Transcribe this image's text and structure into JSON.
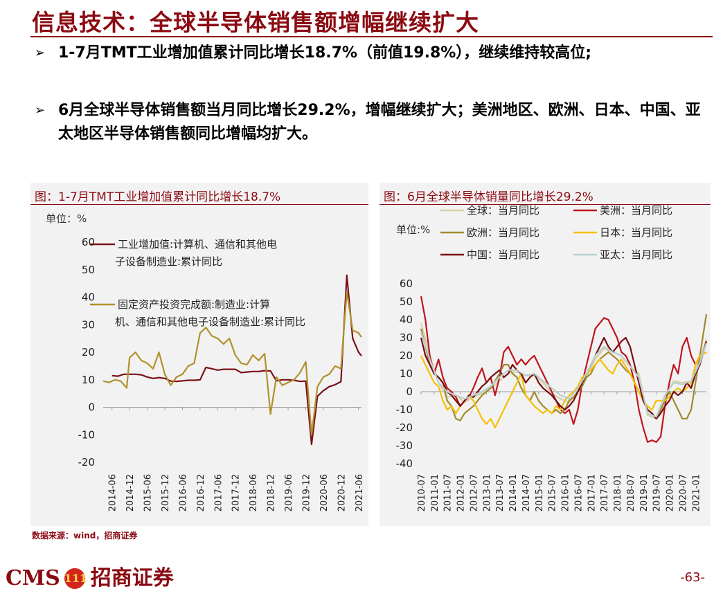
{
  "page": {
    "title": "信息技术：全球半导体销售额增幅继续扩大",
    "bullets": [
      {
        "arrow": "➢",
        "text": "1-7月TMT工业增加值累计同比增长18.7%（前值19.8%），继续维持较高位;"
      },
      {
        "arrow": "➢",
        "text": "6月全球半导体销售额当月同比增长29.2%，增幅继续扩大；美洲地区、欧洲、日本、中国、亚太地区半导体销售额同比增幅均扩大。"
      }
    ],
    "source": "数据来源：wind，招商证券",
    "logo_text": "CMS",
    "logo_badge": "111",
    "logo_name": "招商证券",
    "page_number": "-63-"
  },
  "colors": {
    "accent": "#8b0a12",
    "panel_bg": "#f2f2f2"
  },
  "chart_data": [
    {
      "type": "line",
      "title": "图：1-7月TMT工业增加值累计同比增长18.7%",
      "unit_label": "单位：%",
      "ylim": [
        -20,
        60
      ],
      "yticks": [
        60,
        50,
        40,
        30,
        20,
        10,
        0,
        -10,
        -20
      ],
      "xticks": [
        "2014-06",
        "2014-12",
        "2015-06",
        "2015-12",
        "2016-06",
        "2016-12",
        "2017-06",
        "2017-12",
        "2018-06",
        "2018-12",
        "2019-06",
        "2019-12",
        "2020-06",
        "2020-12",
        "2021-06"
      ],
      "legend": [
        "工业增加值:计算机、通信和其他电子设备制造业:累计同比",
        "固定资产投资完成额:制造业:计算机、通信和其他电子设备制造业:累计同比"
      ],
      "series": [
        {
          "name": "工业增加值:计算机、通信和其他电子设备制造业:累计同比",
          "color": "#7b1018",
          "x": [
            "2014-06",
            "2014-08",
            "2014-10",
            "2014-12",
            "2015-02",
            "2015-04",
            "2015-06",
            "2015-08",
            "2015-10",
            "2015-12",
            "2016-02",
            "2016-04",
            "2016-06",
            "2016-08",
            "2016-10",
            "2016-12",
            "2017-02",
            "2017-04",
            "2017-06",
            "2017-08",
            "2017-10",
            "2017-12",
            "2018-02",
            "2018-04",
            "2018-06",
            "2018-08",
            "2018-10",
            "2018-12",
            "2019-02",
            "2019-04",
            "2019-06",
            "2019-08",
            "2019-10",
            "2019-12",
            "2020-02",
            "2020-04",
            "2020-06",
            "2020-08",
            "2020-10",
            "2020-12",
            "2021-02",
            "2021-04",
            "2021-06",
            "2021-07"
          ],
          "values": [
            11.5,
            11.3,
            12,
            12,
            12,
            11.8,
            11,
            10.5,
            10.8,
            10.5,
            9.5,
            9.4,
            9.6,
            9.8,
            9.8,
            10,
            14.5,
            14,
            13.5,
            13.8,
            13.8,
            13.8,
            12.6,
            12.8,
            13,
            13,
            13.3,
            13.2,
            9.6,
            10,
            10,
            9.8,
            9.4,
            9.5,
            -13.5,
            4,
            6,
            7.5,
            8.2,
            9.3,
            48,
            25,
            20,
            18.7
          ]
        },
        {
          "name": "固定资产投资完成额:制造业:计算机、通信和其他电子设备制造业:累计同比",
          "color": "#b0912c",
          "x": [
            "2014-03",
            "2014-05",
            "2014-07",
            "2014-09",
            "2014-11",
            "2014-12",
            "2015-02",
            "2015-04",
            "2015-06",
            "2015-08",
            "2015-10",
            "2015-12",
            "2016-02",
            "2016-04",
            "2016-06",
            "2016-08",
            "2016-10",
            "2016-12",
            "2017-02",
            "2017-04",
            "2017-06",
            "2017-08",
            "2017-10",
            "2017-12",
            "2018-02",
            "2018-04",
            "2018-06",
            "2018-08",
            "2018-10",
            "2018-12",
            "2019-02",
            "2019-04",
            "2019-06",
            "2019-08",
            "2019-10",
            "2019-12",
            "2020-02",
            "2020-04",
            "2020-06",
            "2020-08",
            "2020-10",
            "2020-12",
            "2021-02",
            "2021-04",
            "2021-06",
            "2021-07"
          ],
          "values": [
            9.5,
            9,
            10,
            9.5,
            7,
            18,
            20,
            17,
            16,
            14,
            20,
            12,
            8,
            11,
            12,
            15,
            16,
            27,
            29,
            26,
            25,
            23,
            25,
            19,
            16,
            15.5,
            19,
            17,
            19.5,
            -2.5,
            11,
            8,
            9,
            10,
            12.5,
            16.5,
            -10,
            7.5,
            11,
            12,
            15,
            14,
            42,
            28,
            27,
            25.5
          ]
        }
      ]
    },
    {
      "type": "line",
      "title": "图：6月全球半导体销量同比增长29.2%",
      "unit_label": "单位:%",
      "ylim": [
        -40,
        60
      ],
      "yticks": [
        60,
        50,
        40,
        30,
        20,
        10,
        0,
        -10,
        -20,
        -30,
        -40
      ],
      "xticks": [
        "2010-07",
        "2011-01",
        "2011-07",
        "2012-01",
        "2012-07",
        "2013-01",
        "2013-07",
        "2014-01",
        "2014-07",
        "2015-01",
        "2015-07",
        "2016-01",
        "2016-07",
        "2017-01",
        "2017-07",
        "2018-01",
        "2018-07",
        "2019-01",
        "2019-07",
        "2020-01",
        "2020-07",
        "2021-01"
      ],
      "legend": [
        "全球：当月同比",
        "美洲：当月同比",
        "欧洲：当月同比",
        "日本：当月同比",
        "中国：当月同比",
        "亚太：当月同比"
      ],
      "series": [
        {
          "name": "全球：当月同比",
          "color": "#d8d1a6",
          "x": [
            "2010-07",
            "2010-11",
            "2011-03",
            "2011-07",
            "2011-11",
            "2012-03",
            "2012-07",
            "2012-11",
            "2013-03",
            "2013-07",
            "2013-11",
            "2014-03",
            "2014-07",
            "2014-11",
            "2015-03",
            "2015-07",
            "2015-11",
            "2016-03",
            "2016-07",
            "2016-11",
            "2017-03",
            "2017-07",
            "2017-11",
            "2018-03",
            "2018-07",
            "2018-11",
            "2019-03",
            "2019-07",
            "2019-11",
            "2020-03",
            "2020-07",
            "2020-11",
            "2021-03",
            "2021-06"
          ],
          "values": [
            38,
            20,
            5,
            -3,
            -2,
            -6,
            -3,
            -1,
            2,
            6,
            10,
            11,
            9,
            9,
            5,
            -1,
            -4,
            -6,
            0,
            8,
            18,
            24,
            22,
            20,
            14,
            10,
            -13,
            -15,
            -3,
            6,
            5,
            6,
            18,
            29.2
          ]
        },
        {
          "name": "美洲：当月同比",
          "color": "#c0141c",
          "x": [
            "2010-07",
            "2010-09",
            "2010-11",
            "2011-01",
            "2011-03",
            "2011-05",
            "2011-07",
            "2011-09",
            "2011-11",
            "2012-01",
            "2012-03",
            "2012-05",
            "2012-07",
            "2012-09",
            "2012-11",
            "2013-01",
            "2013-03",
            "2013-05",
            "2013-07",
            "2013-09",
            "2013-11",
            "2014-01",
            "2014-03",
            "2014-05",
            "2014-07",
            "2014-09",
            "2014-11",
            "2015-01",
            "2015-03",
            "2015-05",
            "2015-07",
            "2015-09",
            "2015-11",
            "2016-01",
            "2016-03",
            "2016-05",
            "2016-07",
            "2016-09",
            "2016-11",
            "2017-01",
            "2017-03",
            "2017-05",
            "2017-07",
            "2017-09",
            "2017-11",
            "2018-01",
            "2018-03",
            "2018-05",
            "2018-07",
            "2018-09",
            "2018-11",
            "2019-01",
            "2019-03",
            "2019-05",
            "2019-07",
            "2019-09",
            "2019-11",
            "2020-01",
            "2020-03",
            "2020-05",
            "2020-07",
            "2020-09",
            "2020-11",
            "2021-01",
            "2021-03",
            "2021-06"
          ],
          "values": [
            53,
            40,
            20,
            10,
            18,
            8,
            2,
            0,
            -3,
            -8,
            -5,
            -3,
            2,
            8,
            13,
            5,
            8,
            -2,
            8,
            22,
            25,
            20,
            15,
            18,
            15,
            18,
            20,
            15,
            10,
            5,
            0,
            -5,
            -10,
            -12,
            -10,
            -18,
            -10,
            5,
            15,
            25,
            35,
            38,
            41,
            40,
            35,
            30,
            22,
            20,
            15,
            5,
            -10,
            -20,
            -28,
            -27,
            -28,
            -25,
            -8,
            5,
            15,
            10,
            25,
            30,
            20,
            15,
            20,
            22
          ]
        },
        {
          "name": "欧洲：当月同比",
          "color": "#a08a2e",
          "x": [
            "2010-07",
            "2010-09",
            "2010-11",
            "2011-01",
            "2011-03",
            "2011-05",
            "2011-07",
            "2011-09",
            "2011-11",
            "2012-01",
            "2012-03",
            "2012-05",
            "2012-07",
            "2012-09",
            "2012-11",
            "2013-01",
            "2013-03",
            "2013-05",
            "2013-07",
            "2013-09",
            "2013-11",
            "2014-01",
            "2014-03",
            "2014-05",
            "2014-07",
            "2014-09",
            "2014-11",
            "2015-01",
            "2015-03",
            "2015-05",
            "2015-07",
            "2015-09",
            "2015-11",
            "2016-01",
            "2016-03",
            "2016-05",
            "2016-07",
            "2016-09",
            "2016-11",
            "2017-01",
            "2017-03",
            "2017-05",
            "2017-07",
            "2017-09",
            "2017-11",
            "2018-01",
            "2018-03",
            "2018-05",
            "2018-07",
            "2018-09",
            "2018-11",
            "2019-01",
            "2019-03",
            "2019-05",
            "2019-07",
            "2019-09",
            "2019-11",
            "2020-01",
            "2020-03",
            "2020-05",
            "2020-07",
            "2020-09",
            "2020-11",
            "2021-01",
            "2021-03",
            "2021-06"
          ],
          "values": [
            35,
            25,
            15,
            10,
            8,
            5,
            -5,
            -8,
            -15,
            -16,
            -12,
            -10,
            -8,
            -5,
            -2,
            0,
            2,
            6,
            10,
            15,
            15,
            10,
            8,
            2,
            -2,
            -5,
            0,
            -5,
            -8,
            -10,
            -12,
            -10,
            -12,
            -10,
            -5,
            -3,
            0,
            3,
            8,
            10,
            15,
            18,
            20,
            22,
            20,
            18,
            15,
            12,
            10,
            5,
            0,
            -5,
            -10,
            -12,
            -15,
            -10,
            -5,
            0,
            -5,
            -10,
            -15,
            -15,
            -10,
            5,
            20,
            43
          ]
        },
        {
          "name": "日本：当月同比",
          "color": "#f5c000",
          "x": [
            "2010-07",
            "2010-09",
            "2010-11",
            "2011-01",
            "2011-03",
            "2011-05",
            "2011-07",
            "2011-09",
            "2011-11",
            "2012-01",
            "2012-03",
            "2012-05",
            "2012-07",
            "2012-09",
            "2012-11",
            "2013-01",
            "2013-03",
            "2013-05",
            "2013-07",
            "2013-09",
            "2013-11",
            "2014-01",
            "2014-03",
            "2014-05",
            "2014-07",
            "2014-09",
            "2014-11",
            "2015-01",
            "2015-03",
            "2015-05",
            "2015-07",
            "2015-09",
            "2015-11",
            "2016-01",
            "2016-03",
            "2016-05",
            "2016-07",
            "2016-09",
            "2016-11",
            "2017-01",
            "2017-03",
            "2017-05",
            "2017-07",
            "2017-09",
            "2017-11",
            "2018-01",
            "2018-03",
            "2018-05",
            "2018-07",
            "2018-09",
            "2018-11",
            "2019-01",
            "2019-03",
            "2019-05",
            "2019-07",
            "2019-09",
            "2019-11",
            "2020-01",
            "2020-03",
            "2020-05",
            "2020-07",
            "2020-09",
            "2020-11",
            "2021-01",
            "2021-03",
            "2021-06"
          ],
          "values": [
            20,
            15,
            10,
            5,
            3,
            -5,
            -10,
            -8,
            -12,
            -8,
            -5,
            -2,
            -5,
            -10,
            -15,
            -18,
            -15,
            -20,
            -15,
            -10,
            -5,
            0,
            5,
            10,
            -2,
            -5,
            -8,
            -10,
            -12,
            -10,
            -12,
            -8,
            -10,
            -5,
            -2,
            0,
            3,
            8,
            10,
            12,
            15,
            18,
            15,
            12,
            10,
            15,
            18,
            14,
            10,
            5,
            0,
            -5,
            -8,
            -10,
            -5,
            -5,
            -5,
            -3,
            0,
            2,
            0,
            2,
            5,
            15,
            20,
            22
          ]
        },
        {
          "name": "中国：当月同比",
          "color": "#7a0c10",
          "x": [
            "2010-07",
            "2010-09",
            "2010-11",
            "2011-01",
            "2011-03",
            "2011-05",
            "2011-07",
            "2011-09",
            "2011-11",
            "2012-01",
            "2012-03",
            "2012-05",
            "2012-07",
            "2012-09",
            "2012-11",
            "2013-01",
            "2013-03",
            "2013-05",
            "2013-07",
            "2013-09",
            "2013-11",
            "2014-01",
            "2014-03",
            "2014-05",
            "2014-07",
            "2014-09",
            "2014-11",
            "2015-01",
            "2015-03",
            "2015-05",
            "2015-07",
            "2015-09",
            "2015-11",
            "2016-01",
            "2016-03",
            "2016-05",
            "2016-07",
            "2016-09",
            "2016-11",
            "2017-01",
            "2017-03",
            "2017-05",
            "2017-07",
            "2017-09",
            "2017-11",
            "2018-01",
            "2018-03",
            "2018-05",
            "2018-07",
            "2018-09",
            "2018-11",
            "2019-01",
            "2019-03",
            "2019-05",
            "2019-07",
            "2019-09",
            "2019-11",
            "2020-01",
            "2020-03",
            "2020-05",
            "2020-07",
            "2020-09",
            "2020-11",
            "2021-01",
            "2021-03",
            "2021-06"
          ],
          "values": [
            30,
            20,
            15,
            10,
            8,
            5,
            0,
            -2,
            -5,
            -8,
            -5,
            -2,
            -3,
            0,
            3,
            5,
            8,
            10,
            12,
            8,
            10,
            15,
            12,
            10,
            5,
            8,
            10,
            5,
            2,
            0,
            -2,
            -5,
            -8,
            -10,
            -8,
            -5,
            0,
            5,
            10,
            15,
            20,
            25,
            30,
            25,
            22,
            25,
            28,
            30,
            25,
            15,
            5,
            -5,
            -10,
            -12,
            -15,
            -12,
            -8,
            -5,
            0,
            -2,
            0,
            5,
            2,
            10,
            15,
            28
          ]
        },
        {
          "name": "亚太：当月同比",
          "color": "#b7cfcf",
          "x": [
            "2010-07",
            "2010-11",
            "2011-03",
            "2011-07",
            "2011-11",
            "2012-03",
            "2012-07",
            "2012-11",
            "2013-03",
            "2013-07",
            "2013-11",
            "2014-03",
            "2014-07",
            "2014-11",
            "2015-03",
            "2015-07",
            "2015-11",
            "2016-03",
            "2016-07",
            "2016-11",
            "2017-03",
            "2017-07",
            "2017-11",
            "2018-03",
            "2018-07",
            "2018-11",
            "2019-03",
            "2019-07",
            "2019-11",
            "2020-03",
            "2020-07",
            "2020-11",
            "2021-03",
            "2021-06"
          ],
          "values": [
            33,
            18,
            5,
            0,
            -2,
            -4,
            -2,
            0,
            3,
            8,
            12,
            12,
            9,
            10,
            6,
            2,
            -2,
            -4,
            2,
            10,
            20,
            25,
            22,
            20,
            14,
            8,
            -12,
            -14,
            -2,
            5,
            4,
            6,
            16,
            27
          ]
        }
      ]
    }
  ]
}
